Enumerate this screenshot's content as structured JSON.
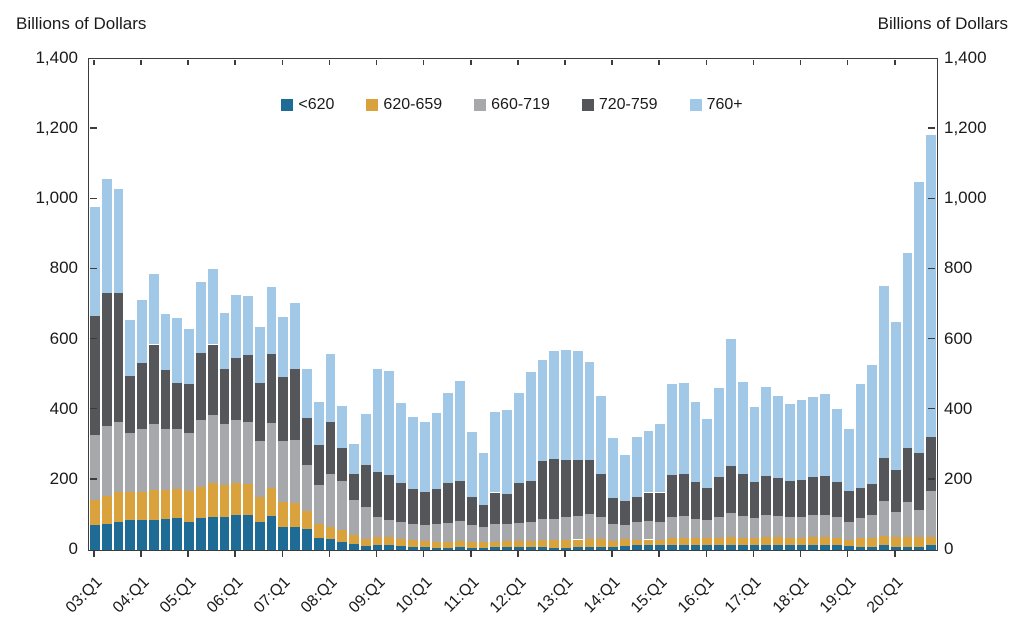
{
  "axis_titles": {
    "left": "Billions of Dollars",
    "right": "Billions of Dollars"
  },
  "chart_data": {
    "type": "bar",
    "stacked": true,
    "title": "",
    "xlabel": "",
    "ylabel_left": "Billions of Dollars",
    "ylabel_right": "Billions of Dollars",
    "ylim": [
      0,
      1400
    ],
    "y_ticks": [
      0,
      200,
      400,
      600,
      800,
      1000,
      1200,
      1400
    ],
    "y_tick_labels": [
      "0",
      "200",
      "400",
      "600",
      "800",
      "1,000",
      "1,200",
      "1,400"
    ],
    "grid": false,
    "legend_position": "top-center-inside",
    "x_tick_labels": [
      "03:Q1",
      "04:Q1",
      "05:Q1",
      "06:Q1",
      "07:Q1",
      "08:Q1",
      "09:Q1",
      "10:Q1",
      "11:Q1",
      "12:Q1",
      "13:Q1",
      "14:Q1",
      "15:Q1",
      "16:Q1",
      "17:Q1",
      "18:Q1",
      "19:Q1",
      "20:Q1"
    ],
    "x_tick_every": 4,
    "categories": [
      "03:Q1",
      "03:Q2",
      "03:Q3",
      "03:Q4",
      "04:Q1",
      "04:Q2",
      "04:Q3",
      "04:Q4",
      "05:Q1",
      "05:Q2",
      "05:Q3",
      "05:Q4",
      "06:Q1",
      "06:Q2",
      "06:Q3",
      "06:Q4",
      "07:Q1",
      "07:Q2",
      "07:Q3",
      "07:Q4",
      "08:Q1",
      "08:Q2",
      "08:Q3",
      "08:Q4",
      "09:Q1",
      "09:Q2",
      "09:Q3",
      "09:Q4",
      "10:Q1",
      "10:Q2",
      "10:Q3",
      "10:Q4",
      "11:Q1",
      "11:Q2",
      "11:Q3",
      "11:Q4",
      "12:Q1",
      "12:Q2",
      "12:Q3",
      "12:Q4",
      "13:Q1",
      "13:Q2",
      "13:Q3",
      "13:Q4",
      "14:Q1",
      "14:Q2",
      "14:Q3",
      "14:Q4",
      "15:Q1",
      "15:Q2",
      "15:Q3",
      "15:Q4",
      "16:Q1",
      "16:Q2",
      "16:Q3",
      "16:Q4",
      "17:Q1",
      "17:Q2",
      "17:Q3",
      "17:Q4",
      "18:Q1",
      "18:Q2",
      "18:Q3",
      "18:Q4",
      "19:Q1",
      "19:Q2",
      "19:Q3",
      "19:Q4",
      "20:Q1",
      "20:Q2",
      "20:Q3",
      "20:Q4"
    ],
    "series": [
      {
        "name": "<620",
        "color": "#1e6c96",
        "values": [
          72,
          75,
          80,
          85,
          85,
          85,
          88,
          90,
          80,
          90,
          95,
          95,
          100,
          100,
          80,
          98,
          66,
          66,
          59,
          33,
          30,
          24,
          18,
          12,
          15,
          14,
          12,
          10,
          8,
          7,
          7,
          8,
          7,
          7,
          8,
          8,
          8,
          8,
          9,
          7,
          7,
          8,
          9,
          9,
          10,
          12,
          13,
          13,
          13,
          14,
          14,
          14,
          14,
          13,
          14,
          13,
          13,
          14,
          14,
          13,
          13,
          14,
          14,
          13,
          11,
          10,
          10,
          14,
          10,
          10,
          10,
          13
        ]
      },
      {
        "name": "620-659",
        "color": "#d9a23c",
        "values": [
          70,
          78,
          85,
          80,
          80,
          87,
          82,
          85,
          89,
          90,
          95,
          90,
          90,
          88,
          70,
          80,
          70,
          69,
          53,
          42,
          36,
          32,
          25,
          19,
          23,
          22,
          20,
          18,
          17,
          17,
          17,
          17,
          16,
          15,
          16,
          17,
          17,
          17,
          19,
          21,
          21,
          22,
          23,
          22,
          16,
          18,
          16,
          17,
          16,
          20,
          20,
          19,
          20,
          20,
          22,
          21,
          20,
          22,
          22,
          21,
          21,
          22,
          22,
          21,
          18,
          24,
          25,
          27,
          28,
          28,
          28,
          25
        ]
      },
      {
        "name": "660-719",
        "color": "#a6a8ab",
        "values": [
          185,
          200,
          200,
          170,
          180,
          188,
          175,
          170,
          165,
          190,
          195,
          175,
          180,
          178,
          160,
          185,
          175,
          180,
          130,
          110,
          150,
          140,
          100,
          91,
          55,
          50,
          48,
          45,
          45,
          51,
          53,
          57,
          48,
          44,
          51,
          50,
          52,
          56,
          60,
          61,
          66,
          68,
          70,
          62,
          48,
          42,
          51,
          52,
          51,
          60,
          62,
          56,
          51,
          60,
          70,
          64,
          57,
          64,
          62,
          60,
          61,
          63,
          64,
          59,
          50,
          56,
          64,
          100,
          70,
          98,
          75,
          130
        ]
      },
      {
        "name": "720-759",
        "color": "#55565a",
        "values": [
          340,
          380,
          368,
          160,
          187,
          226,
          169,
          131,
          140,
          192,
          201,
          155,
          178,
          190,
          165,
          196,
          183,
          200,
          135,
          115,
          150,
          95,
          75,
          120,
          130,
          128,
          110,
          100,
          95,
          98,
          115,
          115,
          79,
          61,
          89,
          84,
          115,
          115,
          165,
          170,
          163,
          160,
          155,
          125,
          75,
          68,
          72,
          82,
          84,
          121,
          120,
          105,
          93,
          115,
          133,
          120,
          105,
          110,
          108,
          104,
          105,
          108,
          110,
          100,
          88,
          86,
          90,
          121,
          121,
          154,
          163,
          154
        ]
      },
      {
        "name": "760+",
        "color": "#a2c8e8",
        "values": [
          311,
          326,
          295,
          161,
          181,
          200,
          158,
          186,
          156,
          203,
          214,
          160,
          180,
          169,
          160,
          190,
          170,
          190,
          138,
          122,
          193,
          119,
          84,
          147,
          292,
          296,
          230,
          205,
          200,
          217,
          257,
          286,
          187,
          149,
          229,
          240,
          257,
          312,
          289,
          308,
          313,
          309,
          279,
          220,
          169,
          130,
          171,
          176,
          196,
          257,
          261,
          227,
          196,
          255,
          364,
          262,
          212,
          256,
          232,
          218,
          228,
          230,
          235,
          208,
          177,
          298,
          339,
          490,
          421,
          556,
          773,
          860
        ]
      }
    ]
  }
}
